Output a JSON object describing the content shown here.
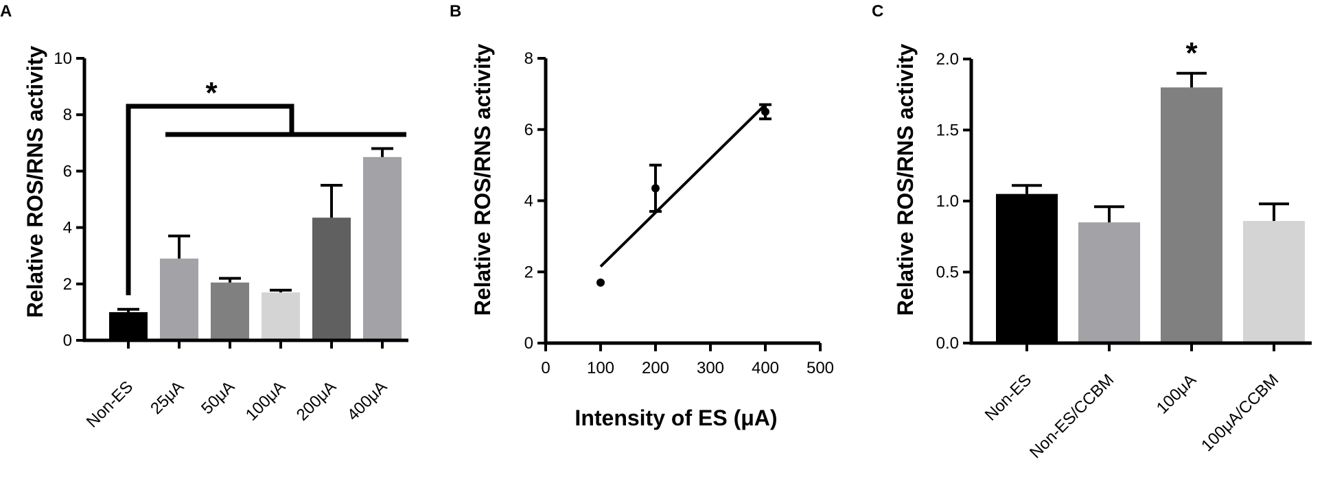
{
  "chart_data": [
    {
      "panel": "A",
      "type": "bar",
      "ylabel": "Relative ROS/RNS activity",
      "xlabel": "",
      "ylim": [
        0,
        10
      ],
      "yticks": [
        "0",
        "2",
        "4",
        "6",
        "8",
        "10"
      ],
      "categories": [
        "Non-ES",
        "25μA",
        "50μA",
        "100μA",
        "200μA",
        "400μA"
      ],
      "values": [
        1.0,
        2.9,
        2.05,
        1.7,
        4.35,
        6.5
      ],
      "errors": [
        0.1,
        0.8,
        0.15,
        0.08,
        1.15,
        0.3
      ],
      "colors": [
        "#000000",
        "#a3a3a7",
        "#808080",
        "#d4d4d4",
        "#606060",
        "#a3a3a7"
      ],
      "annotation": "*"
    },
    {
      "panel": "B",
      "type": "scatter",
      "ylabel": "Relative ROS/RNS activity",
      "xlabel": "Intensity of ES (μA)",
      "xlim": [
        0,
        500
      ],
      "ylim": [
        0,
        8
      ],
      "xticks": [
        "0",
        "100",
        "200",
        "300",
        "400",
        "500"
      ],
      "yticks": [
        "0",
        "2",
        "4",
        "6",
        "8"
      ],
      "points": [
        {
          "x": 100,
          "y": 1.7,
          "err": 0.05
        },
        {
          "x": 200,
          "y": 4.35,
          "err": 0.65
        },
        {
          "x": 400,
          "y": 6.5,
          "err": 0.2
        }
      ],
      "fit_line": {
        "x": [
          100,
          400
        ],
        "y": [
          2.15,
          6.7
        ]
      }
    },
    {
      "panel": "C",
      "type": "bar",
      "ylabel": "Relative ROS/RNS activity",
      "xlabel": "",
      "ylim": [
        0,
        2.0
      ],
      "yticks": [
        "0.0",
        "0.5",
        "1.0",
        "1.5",
        "2.0"
      ],
      "categories": [
        "Non-ES",
        "Non-ES/CCBM",
        "100μA",
        "100μA/CCBM"
      ],
      "values": [
        1.05,
        0.85,
        1.8,
        0.86
      ],
      "errors": [
        0.06,
        0.11,
        0.1,
        0.12
      ],
      "colors": [
        "#000000",
        "#a3a3a7",
        "#808080",
        "#d4d4d4"
      ],
      "annotation": "*"
    }
  ]
}
